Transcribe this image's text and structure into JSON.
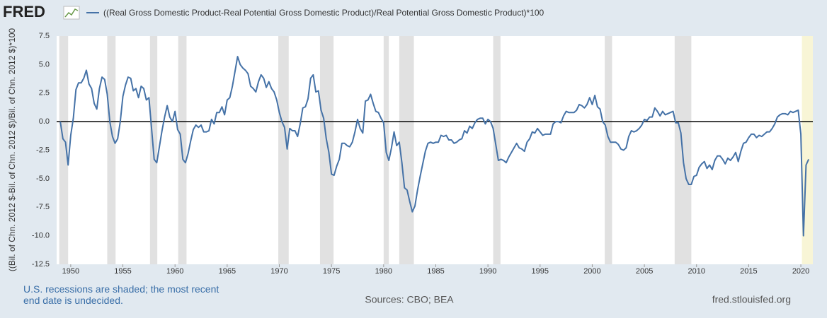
{
  "logo": "FRED",
  "chart_data": {
    "type": "line",
    "y_label": "((Bil. of Chn. 2012 $-Bil. of Chn. 2012 $)/Bil. of Chn. 2012 $)*100",
    "note": "U.S. recessions are shaded; the most recent end date is undecided.",
    "sources": "Sources: CBO; BEA",
    "site": "fred.stlouisfed.org",
    "xlim": [
      1948.65,
      2021.15
    ],
    "xticks": [
      1950,
      1955,
      1960,
      1965,
      1970,
      1975,
      1980,
      1985,
      1990,
      1995,
      2000,
      2005,
      2010,
      2015,
      2020
    ],
    "ylim": [
      -12.5,
      7.5
    ],
    "yticks": [
      7.5,
      {
        "value": 5,
        "label": "5.0"
      },
      2.5,
      {
        "value": 0,
        "label": "0.0"
      },
      -2.5,
      {
        "value": -5,
        "label": "-5.0"
      },
      -7.5,
      {
        "value": -10,
        "label": "-10.0"
      },
      -12.5
    ],
    "grid": false,
    "recession_color": "#e1e1e1",
    "recessions": [
      [
        1948.9,
        1949.75
      ],
      [
        1953.5,
        1954.3
      ],
      [
        1957.6,
        1958.3
      ],
      [
        1960.3,
        1961.1
      ],
      [
        1969.9,
        1970.9
      ],
      [
        1973.9,
        1975.2
      ],
      [
        1980.0,
        1980.5
      ],
      [
        1981.5,
        1982.9
      ],
      [
        1990.5,
        1991.2
      ],
      [
        2001.2,
        2001.9
      ],
      [
        2007.9,
        2009.5
      ]
    ],
    "open_recession_start": 2020.1,
    "open_recession_color": "#f8f5d6",
    "x": [
      1949,
      1949.25,
      1949.5,
      1949.75,
      1950,
      1950.25,
      1950.5,
      1950.75,
      1951,
      1951.25,
      1951.5,
      1951.75,
      1952,
      1952.25,
      1952.5,
      1952.75,
      1953,
      1953.25,
      1953.5,
      1953.75,
      1954,
      1954.25,
      1954.5,
      1954.75,
      1955,
      1955.25,
      1955.5,
      1955.75,
      1956,
      1956.25,
      1956.5,
      1956.75,
      1957,
      1957.25,
      1957.5,
      1957.75,
      1958,
      1958.25,
      1958.5,
      1958.75,
      1959,
      1959.25,
      1959.5,
      1959.75,
      1960,
      1960.25,
      1960.5,
      1960.75,
      1961,
      1961.25,
      1961.5,
      1961.75,
      1962,
      1962.25,
      1962.5,
      1962.75,
      1963,
      1963.25,
      1963.5,
      1963.75,
      1964,
      1964.25,
      1964.5,
      1964.75,
      1965,
      1965.25,
      1965.5,
      1965.75,
      1966,
      1966.25,
      1966.5,
      1966.75,
      1967,
      1967.25,
      1967.5,
      1967.75,
      1968,
      1968.25,
      1968.5,
      1968.75,
      1969,
      1969.25,
      1969.5,
      1969.75,
      1970,
      1970.25,
      1970.5,
      1970.75,
      1971,
      1971.25,
      1971.5,
      1971.75,
      1972,
      1972.25,
      1972.5,
      1972.75,
      1973,
      1973.25,
      1973.5,
      1973.75,
      1974,
      1974.25,
      1974.5,
      1974.75,
      1975,
      1975.25,
      1975.5,
      1975.75,
      1976,
      1976.25,
      1976.5,
      1976.75,
      1977,
      1977.25,
      1977.5,
      1977.75,
      1978,
      1978.25,
      1978.5,
      1978.75,
      1979,
      1979.25,
      1979.5,
      1979.75,
      1980,
      1980.25,
      1980.5,
      1980.75,
      1981,
      1981.25,
      1981.5,
      1981.75,
      1982,
      1982.25,
      1982.5,
      1982.75,
      1983,
      1983.25,
      1983.5,
      1983.75,
      1984,
      1984.25,
      1984.5,
      1984.75,
      1985,
      1985.25,
      1985.5,
      1985.75,
      1986,
      1986.25,
      1986.5,
      1986.75,
      1987,
      1987.25,
      1987.5,
      1987.75,
      1988,
      1988.25,
      1988.5,
      1988.75,
      1989,
      1989.25,
      1989.5,
      1989.75,
      1990,
      1990.25,
      1990.5,
      1990.75,
      1991,
      1991.25,
      1991.5,
      1991.75,
      1992,
      1992.25,
      1992.5,
      1992.75,
      1993,
      1993.25,
      1993.5,
      1993.75,
      1994,
      1994.25,
      1994.5,
      1994.75,
      1995,
      1995.25,
      1995.5,
      1995.75,
      1996,
      1996.25,
      1996.5,
      1996.75,
      1997,
      1997.25,
      1997.5,
      1997.75,
      1998,
      1998.25,
      1998.5,
      1998.75,
      1999,
      1999.25,
      1999.5,
      1999.75,
      2000,
      2000.25,
      2000.5,
      2000.75,
      2001,
      2001.25,
      2001.5,
      2001.75,
      2002,
      2002.25,
      2002.5,
      2002.75,
      2003,
      2003.25,
      2003.5,
      2003.75,
      2004,
      2004.25,
      2004.5,
      2004.75,
      2005,
      2005.25,
      2005.5,
      2005.75,
      2006,
      2006.25,
      2006.5,
      2006.75,
      2007,
      2007.25,
      2007.5,
      2007.75,
      2008,
      2008.25,
      2008.5,
      2008.75,
      2009,
      2009.25,
      2009.5,
      2009.75,
      2010,
      2010.25,
      2010.5,
      2010.75,
      2011,
      2011.25,
      2011.5,
      2011.75,
      2012,
      2012.25,
      2012.5,
      2012.75,
      2013,
      2013.25,
      2013.5,
      2013.75,
      2014,
      2014.25,
      2014.5,
      2014.75,
      2015,
      2015.25,
      2015.5,
      2015.75,
      2016,
      2016.25,
      2016.5,
      2016.75,
      2017,
      2017.25,
      2017.5,
      2017.75,
      2018,
      2018.25,
      2018.5,
      2018.75,
      2019,
      2019.25,
      2019.5,
      2019.75,
      2020,
      2020.25,
      2020.5,
      2020.75
    ],
    "series": [
      {
        "name": "((Real Gross Domestic Product-Real Potential Gross Domestic Product)/Real Potential Gross Domestic Product)*100",
        "color": "#4572a7",
        "values": [
          0.0,
          -1.5,
          -1.8,
          -3.8,
          -1.2,
          0.3,
          2.8,
          3.4,
          3.4,
          3.8,
          4.5,
          3.3,
          2.9,
          1.6,
          1.1,
          2.9,
          3.9,
          3.7,
          2.4,
          0.0,
          -1.3,
          -1.9,
          -1.5,
          0.0,
          2.2,
          3.2,
          3.9,
          3.8,
          2.7,
          2.9,
          2.1,
          3.1,
          2.9,
          1.9,
          2.1,
          -0.6,
          -3.3,
          -3.6,
          -2.2,
          -0.8,
          0.4,
          1.4,
          0.4,
          0.0,
          0.9,
          -0.7,
          -1.1,
          -3.3,
          -3.6,
          -2.8,
          -1.7,
          -0.7,
          -0.3,
          -0.5,
          -0.3,
          -0.9,
          -0.9,
          -0.8,
          0.2,
          -0.2,
          0.8,
          0.8,
          1.3,
          0.6,
          1.9,
          2.1,
          3.1,
          4.4,
          5.7,
          5.0,
          4.7,
          4.5,
          4.2,
          3.1,
          2.9,
          2.6,
          3.5,
          4.1,
          3.8,
          3.0,
          3.5,
          2.9,
          2.6,
          1.9,
          0.8,
          0.0,
          -0.5,
          -2.4,
          -0.6,
          -0.8,
          -0.8,
          -1.3,
          -0.2,
          1.2,
          1.3,
          2.0,
          3.8,
          4.1,
          2.6,
          2.7,
          1.0,
          0.3,
          -1.5,
          -2.7,
          -4.6,
          -4.7,
          -3.9,
          -3.3,
          -1.9,
          -1.9,
          -2.1,
          -2.2,
          -1.8,
          -0.9,
          0.2,
          -0.6,
          -1.0,
          1.8,
          1.9,
          2.4,
          1.6,
          0.9,
          0.8,
          0.3,
          -0.1,
          -2.7,
          -3.4,
          -2.3,
          -0.9,
          -2.1,
          -1.8,
          -3.6,
          -5.8,
          -6.0,
          -7.0,
          -7.9,
          -7.4,
          -6.0,
          -4.8,
          -3.7,
          -2.6,
          -1.9,
          -1.8,
          -1.9,
          -1.8,
          -1.8,
          -1.2,
          -1.3,
          -1.2,
          -1.6,
          -1.6,
          -1.9,
          -1.8,
          -1.6,
          -1.5,
          -0.8,
          -1.0,
          -0.4,
          -0.6,
          -0.1,
          0.2,
          0.3,
          0.3,
          -0.2,
          0.2,
          0.0,
          -0.6,
          -2.0,
          -3.4,
          -3.3,
          -3.4,
          -3.6,
          -3.1,
          -2.7,
          -2.3,
          -1.9,
          -2.3,
          -2.4,
          -2.6,
          -1.8,
          -1.5,
          -0.9,
          -1.0,
          -0.6,
          -0.9,
          -1.2,
          -1.1,
          -1.1,
          -1.1,
          -0.2,
          0.0,
          0.0,
          -0.1,
          0.5,
          0.9,
          0.8,
          0.8,
          0.8,
          1.0,
          1.5,
          1.4,
          1.2,
          1.5,
          2.1,
          1.5,
          2.3,
          1.3,
          1.1,
          0.0,
          -0.3,
          -1.3,
          -1.8,
          -1.8,
          -1.8,
          -2.0,
          -2.4,
          -2.5,
          -2.3,
          -1.3,
          -0.8,
          -0.9,
          -0.8,
          -0.6,
          -0.3,
          0.2,
          0.1,
          0.4,
          0.4,
          1.2,
          0.9,
          0.5,
          0.9,
          0.6,
          0.7,
          0.8,
          0.9,
          -0.1,
          -0.1,
          -1.0,
          -3.6,
          -5.0,
          -5.5,
          -5.5,
          -4.8,
          -4.7,
          -4.0,
          -3.7,
          -3.5,
          -4.1,
          -3.8,
          -4.2,
          -3.4,
          -3.0,
          -3.0,
          -3.3,
          -3.7,
          -3.2,
          -3.4,
          -3.1,
          -2.7,
          -3.5,
          -2.6,
          -1.9,
          -1.8,
          -1.4,
          -1.1,
          -1.1,
          -1.4,
          -1.2,
          -1.3,
          -1.1,
          -0.9,
          -0.9,
          -0.6,
          -0.2,
          0.4,
          0.6,
          0.7,
          0.7,
          0.6,
          0.9,
          0.8,
          0.9,
          1.0,
          -1.1,
          -10.0,
          -3.8,
          -3.3
        ]
      }
    ]
  }
}
